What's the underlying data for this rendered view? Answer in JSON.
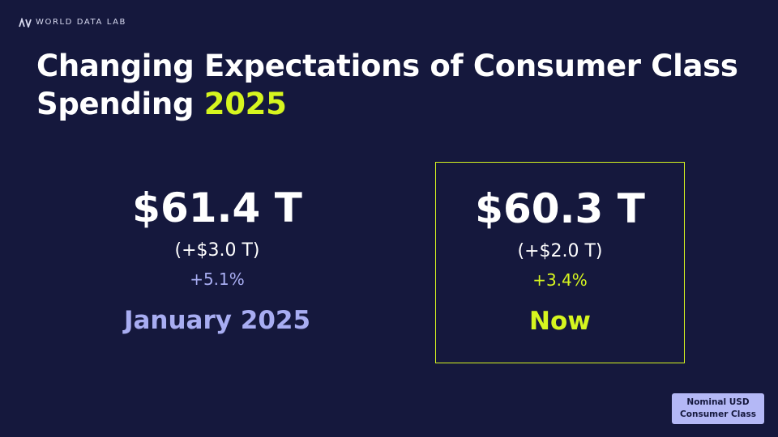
{
  "brand": "WORLD DATA LAB",
  "title": {
    "main": "Changing Expectations of Consumer Class Spending",
    "highlight": "2025"
  },
  "cards": [
    {
      "value": "$61.4 T",
      "change": "(+$3.0 T)",
      "percent": "+5.1%",
      "label": "January 2025"
    },
    {
      "value": "$60.3 T",
      "change": "(+$2.0 T)",
      "percent": "+3.4%",
      "label": "Now"
    }
  ],
  "badge": [
    "Nominal USD",
    "Consumer Class"
  ]
}
